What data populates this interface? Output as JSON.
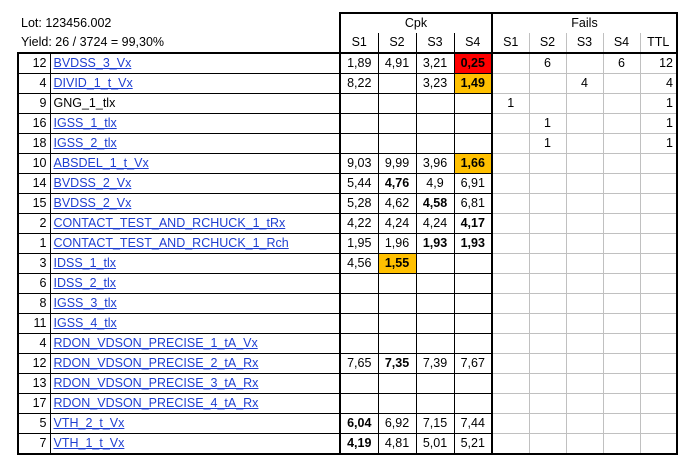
{
  "info": {
    "lot": "Lot: 123456.002",
    "yield": "Yield: 26 / 3724 = 99,30%"
  },
  "headers": {
    "cpk": "Cpk",
    "fails": "Fails",
    "cpk_cols": [
      "S1",
      "S2",
      "S3",
      "S4"
    ],
    "fail_cols": [
      "S1",
      "S2",
      "S3",
      "S4",
      "TTL"
    ]
  },
  "highlight_colors": {
    "red": "#ff0000",
    "orange": "#ffc000"
  },
  "rows": [
    {
      "num": "12",
      "name": "BVDSS_3_Vx",
      "link": true,
      "cpk": [
        "1,89",
        "4,91",
        "3,21",
        "0,25"
      ],
      "bold": [
        false,
        false,
        false,
        true
      ],
      "hl": [
        "",
        "",
        "",
        "red"
      ],
      "fails": [
        "",
        "6",
        "",
        "6"
      ],
      "ttl": "12"
    },
    {
      "num": "4",
      "name": "DIVID_1_t_Vx",
      "link": true,
      "cpk": [
        "8,22",
        "",
        "3,23",
        "1,49"
      ],
      "bold": [
        false,
        false,
        false,
        true
      ],
      "hl": [
        "",
        "",
        "",
        "orange"
      ],
      "fails": [
        "",
        "",
        "4",
        ""
      ],
      "ttl": "4"
    },
    {
      "num": "9",
      "name": "GNG_1_tlx",
      "link": false,
      "cpk": [
        "",
        "",
        "",
        ""
      ],
      "bold": [
        false,
        false,
        false,
        false
      ],
      "hl": [
        "",
        "",
        "",
        ""
      ],
      "fails": [
        "1",
        "",
        "",
        ""
      ],
      "ttl": "1"
    },
    {
      "num": "16",
      "name": "IGSS_1_tlx",
      "link": true,
      "cpk": [
        "",
        "",
        "",
        ""
      ],
      "bold": [
        false,
        false,
        false,
        false
      ],
      "hl": [
        "",
        "",
        "",
        ""
      ],
      "fails": [
        "",
        "1",
        "",
        ""
      ],
      "ttl": "1"
    },
    {
      "num": "18",
      "name": "IGSS_2_tlx",
      "link": true,
      "cpk": [
        "",
        "",
        "",
        ""
      ],
      "bold": [
        false,
        false,
        false,
        false
      ],
      "hl": [
        "",
        "",
        "",
        ""
      ],
      "fails": [
        "",
        "1",
        "",
        ""
      ],
      "ttl": "1"
    },
    {
      "num": "10",
      "name": "ABSDEL_1_t_Vx",
      "link": true,
      "cpk": [
        "9,03",
        "9,99",
        "3,96",
        "1,66"
      ],
      "bold": [
        false,
        false,
        false,
        true
      ],
      "hl": [
        "",
        "",
        "",
        "orange"
      ],
      "fails": [
        "",
        "",
        "",
        ""
      ],
      "ttl": ""
    },
    {
      "num": "14",
      "name": "BVDSS_2_Vx",
      "link": true,
      "cpk": [
        "5,44",
        "4,76",
        "4,9",
        "6,91"
      ],
      "bold": [
        false,
        true,
        false,
        false
      ],
      "hl": [
        "",
        "",
        "",
        ""
      ],
      "fails": [
        "",
        "",
        "",
        ""
      ],
      "ttl": ""
    },
    {
      "num": "15",
      "name": "BVDSS_2_Vx",
      "link": true,
      "cpk": [
        "5,28",
        "4,62",
        "4,58",
        "6,81"
      ],
      "bold": [
        false,
        false,
        true,
        false
      ],
      "hl": [
        "",
        "",
        "",
        ""
      ],
      "fails": [
        "",
        "",
        "",
        ""
      ],
      "ttl": ""
    },
    {
      "num": "2",
      "name": "CONTACT_TEST_AND_RCHUCK_1_tRx",
      "link": true,
      "cpk": [
        "4,22",
        "4,24",
        "4,24",
        "4,17"
      ],
      "bold": [
        false,
        false,
        false,
        true
      ],
      "hl": [
        "",
        "",
        "",
        ""
      ],
      "fails": [
        "",
        "",
        "",
        ""
      ],
      "ttl": ""
    },
    {
      "num": "1",
      "name": "CONTACT_TEST_AND_RCHUCK_1_Rch",
      "link": true,
      "cpk": [
        "1,95",
        "1,96",
        "1,93",
        "1,93"
      ],
      "bold": [
        false,
        false,
        true,
        true
      ],
      "hl": [
        "",
        "",
        "",
        ""
      ],
      "fails": [
        "",
        "",
        "",
        ""
      ],
      "ttl": ""
    },
    {
      "num": "3",
      "name": "IDSS_1_tlx",
      "link": true,
      "cpk": [
        "4,56",
        "1,55",
        "",
        ""
      ],
      "bold": [
        false,
        true,
        false,
        false
      ],
      "hl": [
        "",
        "orange",
        "",
        ""
      ],
      "fails": [
        "",
        "",
        "",
        ""
      ],
      "ttl": ""
    },
    {
      "num": "6",
      "name": "IDSS_2_tlx",
      "link": true,
      "cpk": [
        "",
        "",
        "",
        ""
      ],
      "bold": [
        false,
        false,
        false,
        false
      ],
      "hl": [
        "",
        "",
        "",
        ""
      ],
      "fails": [
        "",
        "",
        "",
        ""
      ],
      "ttl": ""
    },
    {
      "num": "8",
      "name": "IGSS_3_tlx",
      "link": true,
      "cpk": [
        "",
        "",
        "",
        ""
      ],
      "bold": [
        false,
        false,
        false,
        false
      ],
      "hl": [
        "",
        "",
        "",
        ""
      ],
      "fails": [
        "",
        "",
        "",
        ""
      ],
      "ttl": ""
    },
    {
      "num": "11",
      "name": "IGSS_4_tlx",
      "link": true,
      "cpk": [
        "",
        "",
        "",
        ""
      ],
      "bold": [
        false,
        false,
        false,
        false
      ],
      "hl": [
        "",
        "",
        "",
        ""
      ],
      "fails": [
        "",
        "",
        "",
        ""
      ],
      "ttl": ""
    },
    {
      "num": "4",
      "name": "RDON_VDSON_PRECISE_1_tA_Vx",
      "link": true,
      "cpk": [
        "",
        "",
        "",
        ""
      ],
      "bold": [
        false,
        false,
        false,
        false
      ],
      "hl": [
        "",
        "",
        "",
        ""
      ],
      "fails": [
        "",
        "",
        "",
        ""
      ],
      "ttl": ""
    },
    {
      "num": "12",
      "name": "RDON_VDSON_PRECISE_2_tA_Rx",
      "link": true,
      "cpk": [
        "7,65",
        "7,35",
        "7,39",
        "7,67"
      ],
      "bold": [
        false,
        true,
        false,
        false
      ],
      "hl": [
        "",
        "",
        "",
        ""
      ],
      "fails": [
        "",
        "",
        "",
        ""
      ],
      "ttl": ""
    },
    {
      "num": "13",
      "name": "RDON_VDSON_PRECISE_3_tA_Rx",
      "link": true,
      "cpk": [
        "",
        "",
        "",
        ""
      ],
      "bold": [
        false,
        false,
        false,
        false
      ],
      "hl": [
        "",
        "",
        "",
        ""
      ],
      "fails": [
        "",
        "",
        "",
        ""
      ],
      "ttl": ""
    },
    {
      "num": "17",
      "name": "RDON_VDSON_PRECISE_4_tA_Rx",
      "link": true,
      "cpk": [
        "",
        "",
        "",
        ""
      ],
      "bold": [
        false,
        false,
        false,
        false
      ],
      "hl": [
        "",
        "",
        "",
        ""
      ],
      "fails": [
        "",
        "",
        "",
        ""
      ],
      "ttl": ""
    },
    {
      "num": "5",
      "name": "VTH_2_t_Vx",
      "link": true,
      "cpk": [
        "6,04",
        "6,92",
        "7,15",
        "7,44"
      ],
      "bold": [
        true,
        false,
        false,
        false
      ],
      "hl": [
        "",
        "",
        "",
        ""
      ],
      "fails": [
        "",
        "",
        "",
        ""
      ],
      "ttl": ""
    },
    {
      "num": "7",
      "name": "VTH_1_t_Vx",
      "link": true,
      "cpk": [
        "4,19",
        "4,81",
        "5,01",
        "5,21"
      ],
      "bold": [
        true,
        false,
        false,
        false
      ],
      "hl": [
        "",
        "",
        "",
        ""
      ],
      "fails": [
        "",
        "",
        "",
        ""
      ],
      "ttl": ""
    }
  ]
}
